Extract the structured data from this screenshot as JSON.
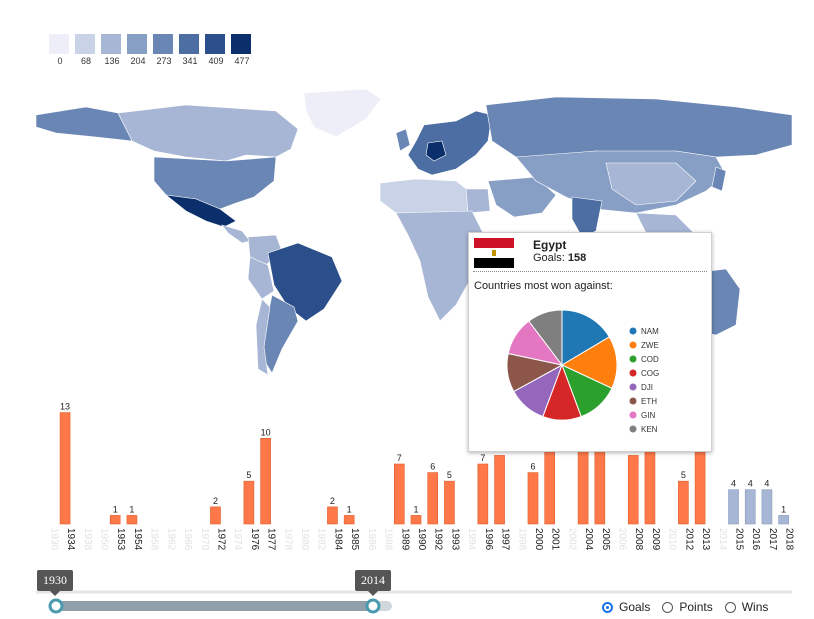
{
  "legend": {
    "labels": [
      "0",
      "68",
      "136",
      "204",
      "273",
      "341",
      "409",
      "477"
    ],
    "colors": [
      "#edeef8",
      "#c9d2e6",
      "#a7b6d4",
      "#889fc5",
      "#6a86b4",
      "#4d6ea3",
      "#2b4f8b",
      "#0b2f6b"
    ]
  },
  "map_colors": {
    "land_default": "#a7b6d4",
    "north_america": "#6a86b4",
    "central_america": "#0b2f6b",
    "south_america": "#2b4f8b",
    "europe": "#4d6ea3",
    "africa": "#c9d2e6",
    "russia": "#6a86b4",
    "asia": "#889fc5",
    "greenland": "#edeef8",
    "australia": "#6a86b4"
  },
  "tooltip": {
    "country": "Egypt",
    "goals_label": "Goals:",
    "goals_value": "158",
    "subtitle": "Countries most won against:"
  },
  "chart_data": [
    {
      "type": "pie",
      "labels": [
        "NAM",
        "ZWE",
        "COD",
        "COG",
        "DJI",
        "ETH",
        "GIN",
        "KEN"
      ],
      "values": [
        16,
        15,
        12,
        11,
        11,
        11,
        11,
        10
      ],
      "colors": [
        "#1f77b4",
        "#ff7f0e",
        "#2ca02c",
        "#d62728",
        "#9467bd",
        "#8c564b",
        "#e377c2",
        "#7f7f7f"
      ]
    },
    {
      "type": "bar",
      "categories": [
        "1930",
        "1934",
        "1938",
        "1950",
        "1953",
        "1954",
        "1958",
        "1962",
        "1966",
        "1970",
        "1972",
        "1974",
        "1976",
        "1977",
        "1978",
        "1980",
        "1982",
        "1984",
        "1985",
        "1986",
        "1988",
        "1989",
        "1990",
        "1992",
        "1993",
        "1994",
        "1996",
        "1997",
        "1998",
        "2000",
        "2001",
        "2002",
        "2004",
        "2005",
        "2006",
        "2008",
        "2009",
        "2010",
        "2012",
        "2013",
        "2014",
        "2015",
        "2016",
        "2017",
        "2018"
      ],
      "values": [
        0,
        13,
        0,
        0,
        1,
        1,
        0,
        0,
        0,
        0,
        2,
        0,
        5,
        10,
        0,
        0,
        0,
        2,
        1,
        0,
        0,
        7,
        1,
        6,
        5,
        0,
        7,
        8,
        0,
        6,
        9,
        0,
        10,
        9,
        0,
        8,
        9,
        0,
        5,
        14,
        0,
        4,
        4,
        4,
        1
      ],
      "labeled": [
        "1934",
        "1953",
        "1954",
        "1972",
        "1976",
        "1977",
        "1984",
        "1985",
        "1989",
        "1990",
        "1992",
        "1993",
        "1996",
        "1997",
        "2000",
        "2001",
        "2004",
        "2005",
        "2008",
        "2009",
        "2012",
        "2013",
        "2015",
        "2016",
        "2017",
        "2018"
      ],
      "shown_labels": {
        "1934": "13",
        "1953": "1",
        "1954": "1",
        "1972": "2",
        "1976": "5",
        "1977": "10",
        "1984": "2",
        "1985": "1",
        "1989": "7",
        "1990": "1",
        "1992": "6",
        "1993": "5",
        "1996": "7",
        "2000": "6",
        "2009": "9",
        "2012": "5",
        "2013": "14",
        "2015": "4",
        "2016": "4",
        "2017": "4",
        "2018": "1"
      },
      "highlight": [
        "2015",
        "2016",
        "2017",
        "2018"
      ],
      "bar_color": "#ff7849",
      "highlight_color": "#a7b6d4"
    }
  ],
  "slider": {
    "start": "1930",
    "end": "2014"
  },
  "modes": [
    {
      "label": "Goals",
      "selected": true
    },
    {
      "label": "Points",
      "selected": false
    },
    {
      "label": "Wins",
      "selected": false
    }
  ]
}
